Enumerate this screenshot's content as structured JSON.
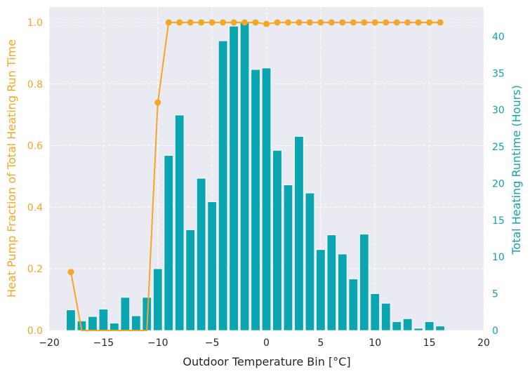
{
  "chart_data": {
    "type": "bar",
    "xlabel": "Outdoor Temperature Bin [°C]",
    "ylabel_left": "Heat Pump Fraction of Total Heating Run Time",
    "ylabel_right": "Total Heating Runtime (Hours)",
    "xlim": [
      -20,
      20
    ],
    "ylim_left": [
      0,
      1.05
    ],
    "ylim_right": [
      0,
      44
    ],
    "x_ticks": [
      -20,
      -15,
      -10,
      -5,
      0,
      5,
      10,
      15,
      20
    ],
    "x_tick_labels": [
      "−20",
      "−15",
      "−10",
      "−5",
      "0",
      "5",
      "10",
      "15",
      "20"
    ],
    "y_left_ticks": [
      0.0,
      0.2,
      0.4,
      0.6,
      0.8,
      1.0
    ],
    "y_left_tick_labels": [
      "0.0",
      "0.2",
      "0.4",
      "0.6",
      "0.8",
      "1.0"
    ],
    "y_right_ticks": [
      0,
      5,
      10,
      15,
      20,
      25,
      30,
      35,
      40
    ],
    "y_right_tick_labels": [
      "0",
      "5",
      "10",
      "15",
      "20",
      "25",
      "30",
      "35",
      "40"
    ],
    "grid": true,
    "runtime_bars": {
      "axis": "right",
      "x": [
        -18,
        -17,
        -16,
        -15,
        -14,
        -13,
        -12,
        -11,
        -10,
        -9,
        -8,
        -7,
        -6,
        -5,
        -4,
        -3,
        -2,
        -1,
        0,
        1,
        2,
        3,
        4,
        5,
        6,
        7,
        8,
        9,
        10,
        11,
        12,
        13,
        14,
        15,
        16
      ],
      "values": [
        2.8,
        1.3,
        1.9,
        2.9,
        1.0,
        4.5,
        2.0,
        4.5,
        8.4,
        23.8,
        29.3,
        13.7,
        20.7,
        17.5,
        39.4,
        41.4,
        42.0,
        35.5,
        35.7,
        24.5,
        19.8,
        26.4,
        18.7,
        11.0,
        13.0,
        10.4,
        7.0,
        13.1,
        5.0,
        3.7,
        1.2,
        1.6,
        0.3,
        1.2,
        0.6
      ]
    },
    "heat_pump_fraction": {
      "axis": "left",
      "x": [
        -18,
        -17,
        -16,
        -15,
        -14,
        -13,
        -12,
        -11,
        -10,
        -9,
        -8,
        -7,
        -6,
        -5,
        -4,
        -3,
        -2,
        -1,
        0,
        1,
        2,
        3,
        4,
        5,
        6,
        7,
        8,
        9,
        10,
        11,
        12,
        13,
        14,
        15,
        16
      ],
      "values": [
        0.19,
        0.0,
        0.0,
        0.0,
        0.0,
        0.0,
        0.0,
        0.0,
        0.74,
        1.0,
        1.0,
        1.0,
        1.0,
        1.0,
        1.0,
        1.0,
        1.0,
        1.0,
        0.995,
        1.0,
        1.0,
        1.0,
        1.0,
        1.0,
        1.0,
        1.0,
        1.0,
        1.0,
        1.0,
        1.0,
        1.0,
        1.0,
        1.0,
        1.0,
        1.0
      ],
      "marker_shown": [
        true,
        false,
        false,
        false,
        false,
        false,
        false,
        false,
        true,
        true,
        true,
        true,
        true,
        true,
        true,
        true,
        true,
        true,
        true,
        true,
        true,
        true,
        true,
        true,
        true,
        true,
        true,
        true,
        true,
        true,
        true,
        true,
        true,
        true,
        true
      ]
    },
    "colors": {
      "bars": "#0aa5b0",
      "line": "#f5a623",
      "right_axis_text": "#12a3ad",
      "left_axis_text": "#f5a623",
      "plot_bg": "#eaeaf2",
      "grid": "#ffffff",
      "text": "#262626"
    }
  }
}
